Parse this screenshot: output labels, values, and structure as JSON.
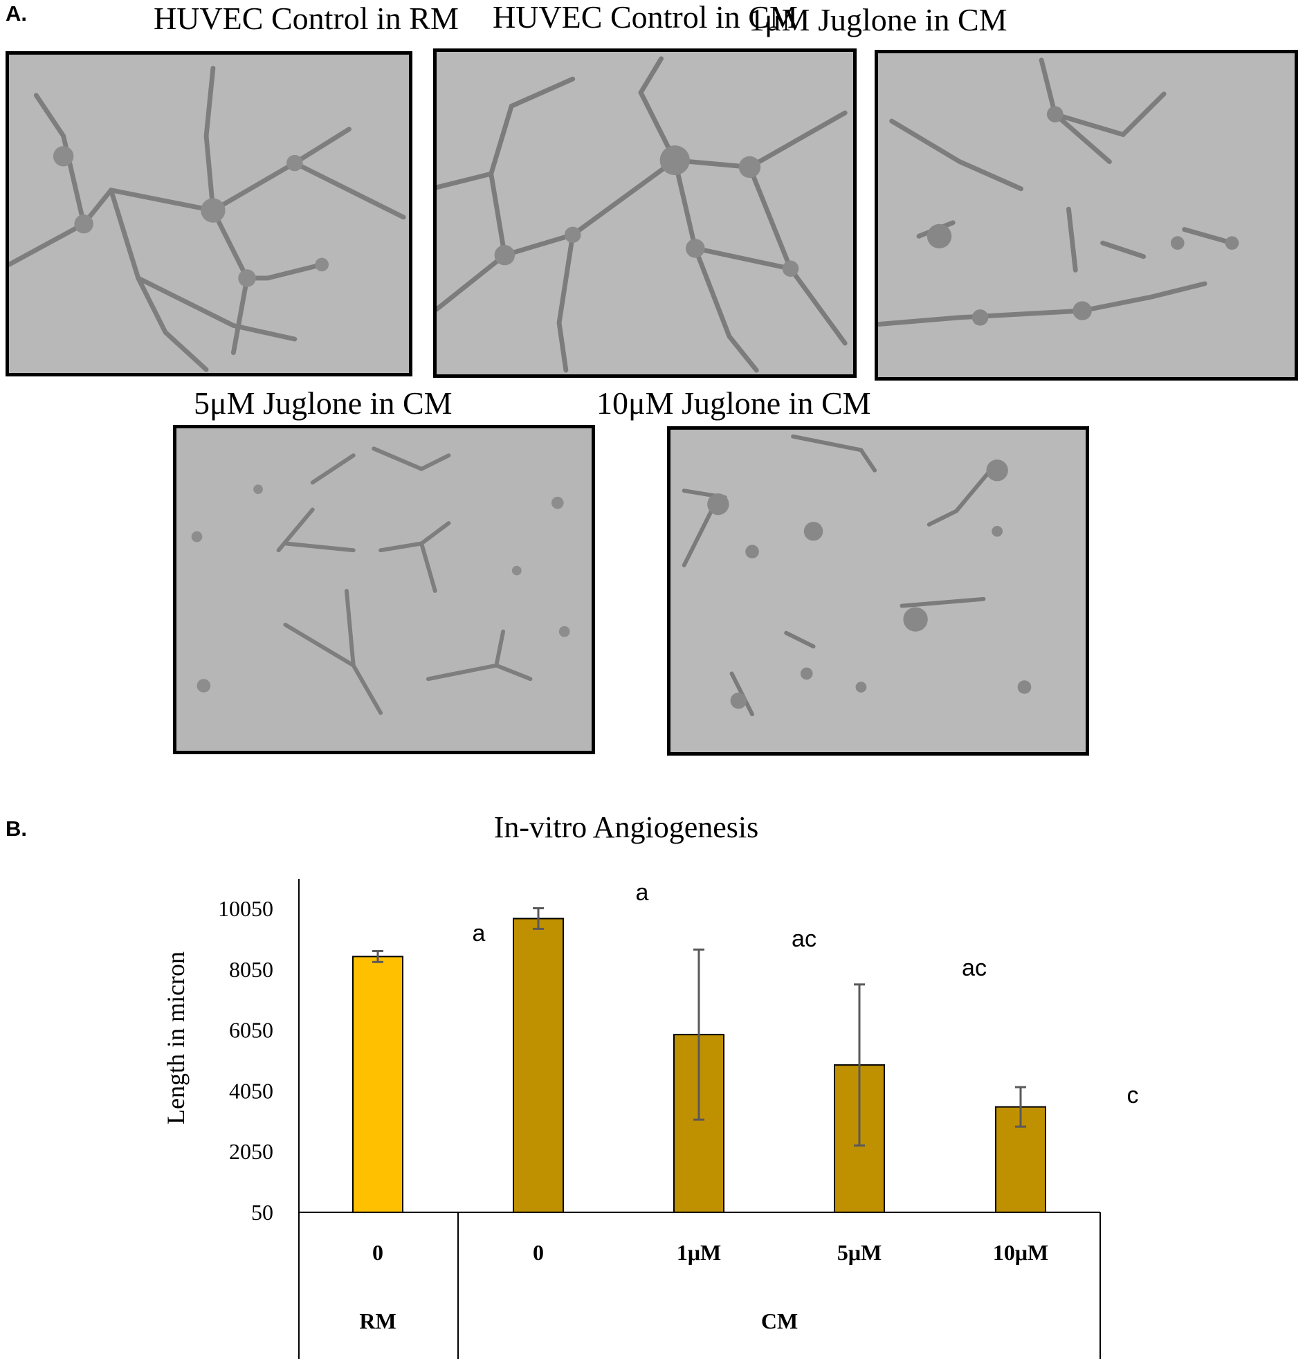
{
  "panel_a": {
    "letter": "A.",
    "captions": [
      "HUVEC Control in RM",
      "HUVEC Control in CM",
      "1μM Juglone in CM",
      "5μM Juglone in CM",
      "10μM Juglone in CM"
    ]
  },
  "panel_b": {
    "letter": "B."
  },
  "chart_data": {
    "type": "bar",
    "title": "In-vitro Angiogenesis",
    "ylabel": "Length in micron",
    "xlabel": "",
    "ylim": [
      50,
      10050
    ],
    "yticks": [
      50,
      2050,
      4050,
      6050,
      8050,
      10050
    ],
    "categories": [
      "0",
      "0",
      "1μM",
      "5μM",
      "10μM"
    ],
    "groups": [
      {
        "label": "RM",
        "categories": [
          0
        ]
      },
      {
        "label": "CM",
        "categories": [
          1,
          2,
          3,
          4
        ]
      }
    ],
    "values": [
      8470,
      9720,
      5900,
      4900,
      3520
    ],
    "errors": [
      180,
      340,
      2800,
      2650,
      650
    ],
    "colors": [
      "#FFC000",
      "#BF9000",
      "#BF9000",
      "#BF9000",
      "#BF9000"
    ],
    "significance": [
      "a",
      "a",
      "ac",
      "ac",
      "c"
    ]
  }
}
